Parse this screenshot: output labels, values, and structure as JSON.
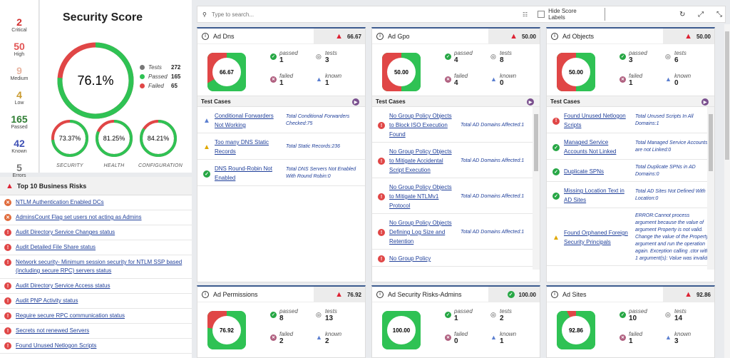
{
  "stats": [
    {
      "value": "2",
      "label": "Critical",
      "color": "#d32f2f"
    },
    {
      "value": "50",
      "label": "High",
      "color": "#e25555"
    },
    {
      "value": "9",
      "label": "Medium",
      "color": "#e8b4a0"
    },
    {
      "value": "4",
      "label": "Low",
      "color": "#c99a2e"
    },
    {
      "value": "165",
      "label": "Passed",
      "color": "#2e7d32"
    },
    {
      "value": "42",
      "label": "Known",
      "color": "#3f51b5"
    },
    {
      "value": "5",
      "label": "Errors",
      "color": "#777"
    }
  ],
  "score": {
    "title": "Security Score",
    "value": "76.1%",
    "percent": 76.1,
    "legend": [
      {
        "label": "Tests",
        "value": "272",
        "color": "#777"
      },
      {
        "label": "Passed",
        "value": "165",
        "color": "#2fc254"
      },
      {
        "label": "Failed",
        "value": "65",
        "color": "#e04646"
      }
    ],
    "minis": [
      {
        "value": "73.37%",
        "percent": 73.37,
        "label": "SECURITY"
      },
      {
        "value": "81.25%",
        "percent": 81.25,
        "label": "HEALTH"
      },
      {
        "value": "84.21%",
        "percent": 84.21,
        "label": "CONFIGURATION"
      }
    ]
  },
  "risks": {
    "title": "Top 10 Business Risks",
    "items": [
      {
        "icon": "x",
        "label": "NTLM Authentication Enabled DCs"
      },
      {
        "icon": "x",
        "label": "AdminsCount Flag set users not acting as Admins"
      },
      {
        "icon": "err",
        "label": "Audit Directory Service Changes status"
      },
      {
        "icon": "err",
        "label": "Audit Detailed File Share status"
      },
      {
        "icon": "err",
        "label": "Network security- Minimum session security for NTLM SSP based (including secure RPC) servers status"
      },
      {
        "icon": "err",
        "label": "Audit Directory Service Access status"
      },
      {
        "icon": "err",
        "label": "Audit PNP Activity status"
      },
      {
        "icon": "err",
        "label": "Require secure RPC communication status"
      },
      {
        "icon": "err",
        "label": "Secrets not renewed Servers"
      },
      {
        "icon": "err",
        "label": "Found Unused Netlogon Scripts"
      }
    ]
  },
  "toolbar": {
    "search_placeholder": "Type to search...",
    "hide_labels": "Hide Score Labels"
  },
  "cards": [
    {
      "title": "Ad Dns",
      "score": "66.67",
      "percent": 66.67,
      "status": "warn",
      "passed": "1",
      "tests": "3",
      "failed": "1",
      "known": "1",
      "cases": [
        {
          "icon": "info",
          "name": "Conditional Forwarders Not Working",
          "desc": "Total Conditional Forwarders Checked:75"
        },
        {
          "icon": "warn",
          "name": "Too many DNS Static Records",
          "desc": "Total Static Records:236"
        },
        {
          "icon": "ok",
          "name": "DNS Round-Robin Not Enabled",
          "desc": "Total DNS Servers Not Enabled With Round Robin:0"
        }
      ]
    },
    {
      "title": "Ad Gpo",
      "score": "50.00",
      "percent": 50,
      "status": "warn",
      "passed": "4",
      "tests": "8",
      "failed": "4",
      "known": "0",
      "cases": [
        {
          "icon": "err",
          "name": "No Group Policy Objects to Block ISO Execution Found",
          "desc": "Total AD Domains Affected:1"
        },
        {
          "icon": "err",
          "name": "No Group Policy Objects to Mitigate Accidental Script Execution",
          "desc": "Total AD Domains Affected:1"
        },
        {
          "icon": "err",
          "name": "No Group Policy Objects to Mitigate NTLMv1 Protocol",
          "desc": "Total AD Domains Affected:1"
        },
        {
          "icon": "err",
          "name": "No Group Policy Objects Defining Log Size and Retention",
          "desc": "Total AD Domains Affected:1"
        },
        {
          "icon": "err",
          "name": "No Group Policy",
          "desc": ""
        }
      ]
    },
    {
      "title": "Ad Objects",
      "score": "50.00",
      "percent": 50,
      "status": "warn",
      "passed": "3",
      "tests": "6",
      "failed": "1",
      "known": "0",
      "cases": [
        {
          "icon": "err",
          "name": "Found Unused Netlogon Scripts",
          "desc": "Total Unused Scripts In All Domains:1"
        },
        {
          "icon": "ok",
          "name": "Managed Service Accounts Not Linked",
          "desc": "Total Managed Service Accounts are not Linked:0"
        },
        {
          "icon": "ok",
          "name": "Duplicate SPNs",
          "desc": "Total Duplicate SPNs in AD Domains:0"
        },
        {
          "icon": "ok",
          "name": "Missing Location Text in AD Sites",
          "desc": "Total AD Sites Not Defined With Location:0"
        },
        {
          "icon": "warn",
          "name": "Found Orphaned Foreign Security Principals",
          "desc": "ERROR:Cannot process argument because the value of argument Property is not valid. Change the value of the Property argument and run the operation again. Exception calling .ctor with 1 argument(s): Value was invalid."
        }
      ]
    },
    {
      "title": "Ad Permissions",
      "score": "76.92",
      "percent": 76.92,
      "status": "warn",
      "passed": "8",
      "tests": "13",
      "failed": "2",
      "known": "2",
      "cases": []
    },
    {
      "title": "Ad Security Risks-Admins",
      "score": "100.00",
      "percent": 100,
      "status": "ok",
      "passed": "1",
      "tests": "2",
      "failed": "0",
      "known": "1",
      "cases": []
    },
    {
      "title": "Ad Sites",
      "score": "92.86",
      "percent": 92.86,
      "status": "warn",
      "passed": "10",
      "tests": "14",
      "failed": "1",
      "known": "3",
      "cases": []
    }
  ],
  "labels": {
    "passed": "passed",
    "tests": "tests",
    "failed": "failed",
    "known": "known",
    "test_cases": "Test Cases"
  },
  "colors": {
    "green": "#2fc254",
    "red": "#e04646",
    "accent": "#3c5b8f"
  }
}
